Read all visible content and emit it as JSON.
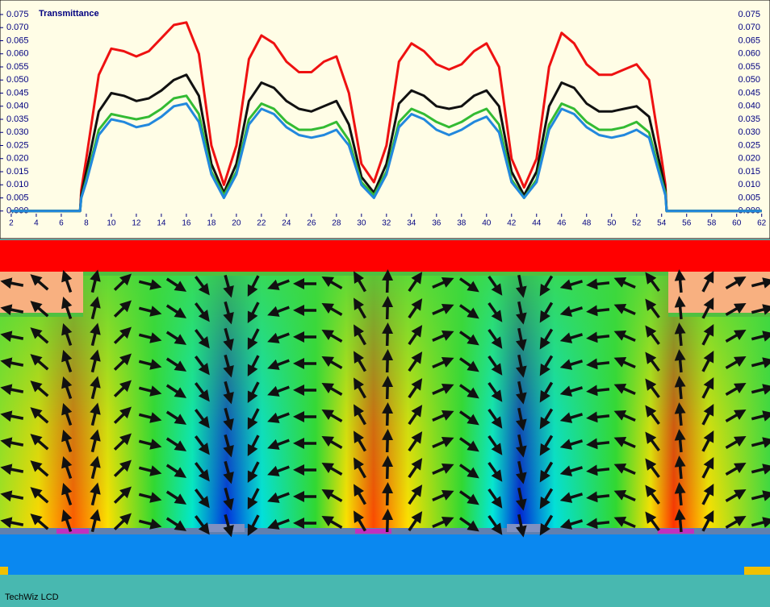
{
  "chart_data": {
    "type": "line",
    "title": "Transmittance",
    "x": [
      2,
      7.5,
      7.6,
      8,
      9,
      10,
      11,
      12,
      13,
      14,
      15,
      16,
      17,
      18,
      19,
      20,
      21,
      22,
      23,
      24,
      25,
      26,
      27,
      28,
      29,
      30,
      31,
      32,
      33,
      34,
      35,
      36,
      37,
      38,
      39,
      40,
      41,
      42,
      43,
      44,
      45,
      46,
      47,
      48,
      49,
      50,
      51,
      52,
      53,
      54,
      54.3,
      54.4,
      62
    ],
    "series": [
      {
        "color": "#ee1111",
        "values": [
          0,
          0,
          0.008,
          0.02,
          0.052,
          0.062,
          0.061,
          0.059,
          0.061,
          0.066,
          0.071,
          0.072,
          0.06,
          0.025,
          0.01,
          0.025,
          0.058,
          0.067,
          0.064,
          0.057,
          0.053,
          0.053,
          0.057,
          0.059,
          0.045,
          0.018,
          0.011,
          0.025,
          0.057,
          0.064,
          0.061,
          0.056,
          0.054,
          0.056,
          0.061,
          0.064,
          0.055,
          0.02,
          0.009,
          0.02,
          0.055,
          0.068,
          0.064,
          0.056,
          0.052,
          0.052,
          0.054,
          0.056,
          0.05,
          0.02,
          0.01,
          0,
          0
        ]
      },
      {
        "color": "#111111",
        "values": [
          0,
          0,
          0.006,
          0.015,
          0.038,
          0.045,
          0.044,
          0.042,
          0.043,
          0.046,
          0.05,
          0.052,
          0.044,
          0.018,
          0.007,
          0.018,
          0.042,
          0.049,
          0.047,
          0.042,
          0.039,
          0.038,
          0.04,
          0.042,
          0.033,
          0.013,
          0.007,
          0.018,
          0.041,
          0.046,
          0.044,
          0.04,
          0.039,
          0.04,
          0.044,
          0.046,
          0.04,
          0.015,
          0.006,
          0.015,
          0.04,
          0.049,
          0.047,
          0.041,
          0.038,
          0.038,
          0.039,
          0.04,
          0.036,
          0.015,
          0.008,
          0,
          0
        ]
      },
      {
        "color": "#33bb33",
        "values": [
          0,
          0,
          0.005,
          0.012,
          0.031,
          0.037,
          0.036,
          0.035,
          0.036,
          0.039,
          0.043,
          0.044,
          0.037,
          0.015,
          0.006,
          0.015,
          0.035,
          0.041,
          0.039,
          0.034,
          0.031,
          0.031,
          0.032,
          0.034,
          0.027,
          0.011,
          0.006,
          0.015,
          0.034,
          0.039,
          0.037,
          0.034,
          0.032,
          0.034,
          0.037,
          0.039,
          0.033,
          0.012,
          0.005,
          0.012,
          0.033,
          0.041,
          0.039,
          0.034,
          0.031,
          0.031,
          0.032,
          0.034,
          0.03,
          0.012,
          0.007,
          0,
          0
        ]
      },
      {
        "color": "#2288dd",
        "values": [
          0,
          0,
          0.005,
          0.011,
          0.029,
          0.035,
          0.034,
          0.032,
          0.033,
          0.036,
          0.04,
          0.041,
          0.034,
          0.014,
          0.005,
          0.014,
          0.033,
          0.039,
          0.037,
          0.032,
          0.029,
          0.028,
          0.029,
          0.031,
          0.025,
          0.01,
          0.005,
          0.014,
          0.032,
          0.037,
          0.035,
          0.031,
          0.029,
          0.031,
          0.034,
          0.036,
          0.03,
          0.011,
          0.005,
          0.011,
          0.031,
          0.039,
          0.037,
          0.032,
          0.029,
          0.028,
          0.029,
          0.031,
          0.028,
          0.011,
          0.006,
          0,
          0
        ]
      }
    ],
    "xlim": [
      1.1,
      62.6
    ],
    "xticks": [
      2,
      4,
      6,
      8,
      10,
      12,
      14,
      16,
      18,
      20,
      22,
      24,
      26,
      28,
      30,
      32,
      34,
      36,
      38,
      40,
      42,
      44,
      46,
      48,
      50,
      52,
      54,
      56,
      58,
      60,
      62
    ],
    "ylim": [
      -0.001,
      0.079
    ],
    "yticks": [
      {
        "value": 0,
        "label": "0.000"
      },
      0.005,
      {
        "value": 0.01,
        "label": "0.010"
      },
      0.015,
      {
        "value": 0.02,
        "label": "0.020"
      },
      0.025,
      {
        "value": 0.03,
        "label": "0.030"
      },
      0.035,
      {
        "value": 0.04,
        "label": "0.040"
      },
      0.045,
      {
        "value": 0.05,
        "label": "0.050"
      },
      0.055,
      {
        "value": 0.06,
        "label": "0.060"
      },
      0.065,
      {
        "value": 0.07,
        "label": "0.070"
      },
      0.075
    ]
  },
  "footer_label": "TechWiz LCD"
}
